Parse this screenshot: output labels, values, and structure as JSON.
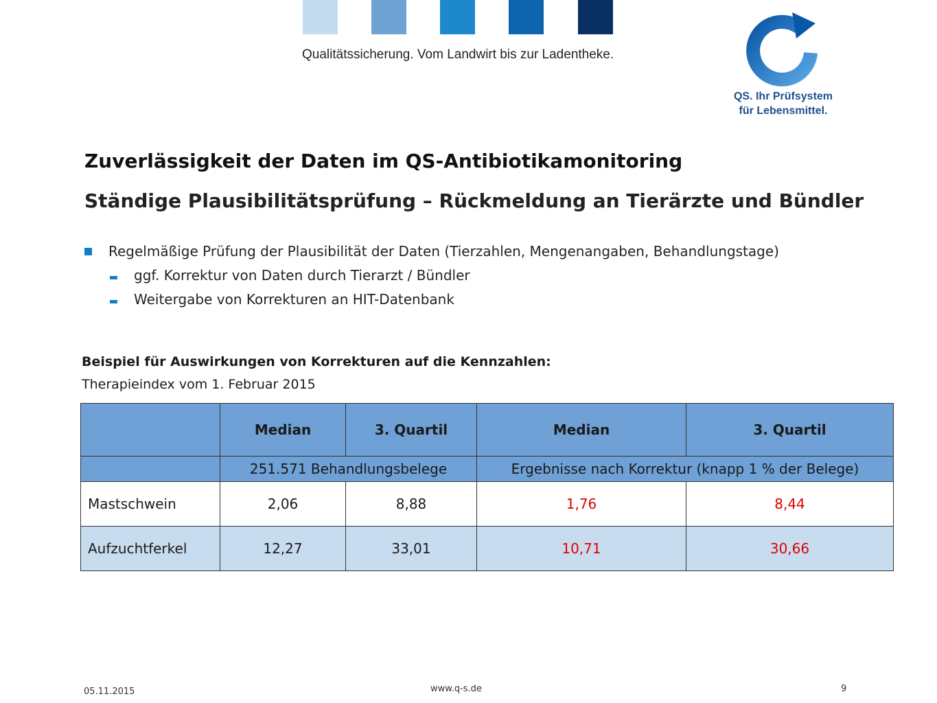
{
  "header": {
    "color_blocks": [
      "#c5dcf0",
      "#6fa3d4",
      "#1e88cc",
      "#0e64ae",
      "#0a2f63"
    ],
    "tagline": "Qualitätssicherung. Vom Landwirt bis zur Ladentheke.",
    "logo": {
      "icon": "qs-circular-arrow-logo",
      "line1": "QS. Ihr Prüfsystem",
      "line2": "für Lebensmittel."
    }
  },
  "slide": {
    "title": "Zuverlässigkeit der Daten im QS-Antibiotikamonitoring",
    "subtitle": "Ständige Plausibilitätsprüfung – Rückmeldung an Tierärzte und Bündler",
    "bullets": {
      "main": "Regelmäßige Prüfung der Plausibilität der Daten (Tierzahlen, Mengenangaben, Behandlungstage)",
      "sub1": "ggf. Korrektur von Daten durch Tierarzt / Bündler",
      "sub2": "Weitergabe von Korrekturen an HIT-Datenbank"
    },
    "example_heading": "Beispiel für Auswirkungen von Korrekturen auf die Kennzahlen:",
    "example_sub": "Therapieindex vom 1. Februar 2015"
  },
  "table": {
    "headers": [
      "",
      "Median",
      "3. Quartil",
      "Median",
      "3. Quartil"
    ],
    "group_before": "251.571 Behandlungsbelege",
    "group_after": "Ergebnisse nach Korrektur (knapp 1 % der Belege)",
    "rows": [
      {
        "label": "Mastschwein",
        "median": "2,06",
        "q3": "8,88",
        "median_corr": "1,76",
        "q3_corr": "8,44"
      },
      {
        "label": "Aufzuchtferkel",
        "median": "12,27",
        "q3": "33,01",
        "median_corr": "10,71",
        "q3_corr": "30,66"
      }
    ],
    "corrected_color": "#e00000"
  },
  "footer": {
    "date": "05.11.2015",
    "url": "www.q-s.de",
    "page": "9"
  }
}
